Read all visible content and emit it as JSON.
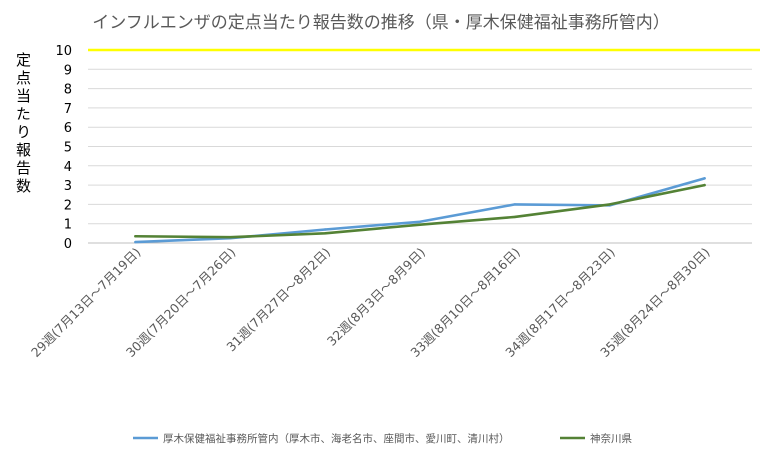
{
  "chart_data": {
    "type": "line",
    "title": "インフルエンザの定点当たり報告数の推移（県・厚木保健福祉事務所管内）",
    "ylabel": "定点当たり報告数",
    "xlabel": "",
    "ylim": [
      0,
      10
    ],
    "yticks": [
      0,
      1,
      2,
      3,
      4,
      5,
      6,
      7,
      8,
      9,
      10
    ],
    "grid": true,
    "legend": "bottom",
    "categories": [
      "29週(7月13日～7月19日)",
      "30週(7月20日～7月26日)",
      "31週(7月27日～8月2日)",
      "32週(8月3日～8月9日)",
      "33週(8月10日～8月16日)",
      "34週(8月17日～8月23日)",
      "35週(8月24日～8月30日)"
    ],
    "series": [
      {
        "name": "厚木保健福祉事務所管内（厚木市、海老名市、座間市、愛川町、清川村）",
        "color": "#5B9BD5",
        "values": [
          0.05,
          0.25,
          0.7,
          1.1,
          2.0,
          1.95,
          3.35
        ]
      },
      {
        "name": "神奈川県",
        "color": "#548235",
        "values": [
          0.35,
          0.3,
          0.5,
          0.95,
          1.35,
          2.0,
          3.0
        ]
      }
    ],
    "reference_line": {
      "value": 10,
      "color": "#FFFF00"
    }
  }
}
